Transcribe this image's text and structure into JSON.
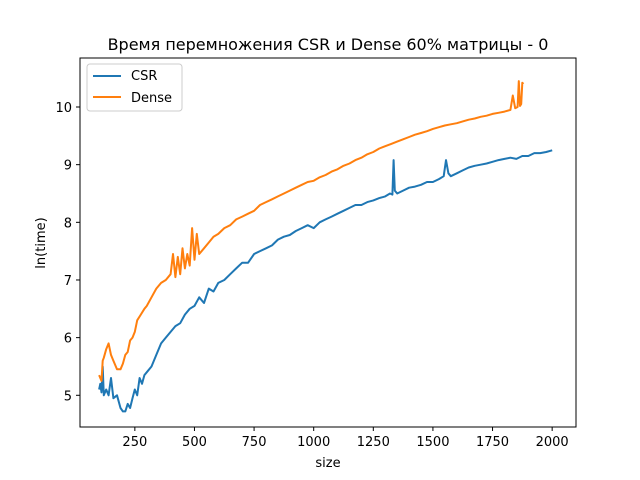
{
  "chart_data": {
    "type": "line",
    "title": "Время перемножения CSR и Dense 60% матрицы - 0",
    "xlabel": "size",
    "ylabel": "ln(time)",
    "xlim": [
      20,
      2100
    ],
    "ylim": [
      4.45,
      10.85
    ],
    "xticks": [
      250,
      500,
      750,
      1000,
      1250,
      1500,
      1750,
      2000
    ],
    "yticks": [
      5,
      6,
      7,
      8,
      9,
      10
    ],
    "grid": false,
    "legend": "top-left",
    "series": [
      {
        "name": "CSR",
        "color": "#1f77b4",
        "x": [
          100,
          105,
          110,
          115,
          120,
          130,
          140,
          150,
          160,
          175,
          190,
          200,
          210,
          220,
          230,
          240,
          250,
          260,
          270,
          280,
          290,
          300,
          320,
          340,
          360,
          380,
          400,
          420,
          440,
          460,
          480,
          500,
          520,
          540,
          560,
          580,
          600,
          625,
          650,
          675,
          700,
          725,
          750,
          775,
          800,
          825,
          850,
          875,
          900,
          925,
          950,
          975,
          1000,
          1025,
          1050,
          1075,
          1100,
          1125,
          1150,
          1175,
          1200,
          1225,
          1250,
          1275,
          1300,
          1320,
          1330,
          1335,
          1340,
          1350,
          1375,
          1400,
          1425,
          1450,
          1475,
          1500,
          1525,
          1545,
          1555,
          1565,
          1575,
          1600,
          1625,
          1650,
          1675,
          1700,
          1725,
          1750,
          1775,
          1800,
          1825,
          1850,
          1875,
          1900,
          1925,
          1950,
          1975,
          2000
        ],
        "y": [
          5.1,
          5.2,
          5.05,
          5.5,
          5.0,
          5.1,
          5.0,
          5.3,
          4.95,
          5.0,
          4.78,
          4.72,
          4.72,
          4.85,
          4.78,
          4.95,
          5.1,
          5.0,
          5.3,
          5.2,
          5.35,
          5.4,
          5.5,
          5.7,
          5.9,
          6.0,
          6.1,
          6.2,
          6.25,
          6.4,
          6.5,
          6.55,
          6.7,
          6.6,
          6.85,
          6.8,
          6.95,
          7.0,
          7.1,
          7.2,
          7.3,
          7.3,
          7.45,
          7.5,
          7.55,
          7.6,
          7.7,
          7.75,
          7.78,
          7.85,
          7.9,
          7.95,
          7.9,
          8.0,
          8.05,
          8.1,
          8.15,
          8.2,
          8.25,
          8.3,
          8.3,
          8.35,
          8.38,
          8.42,
          8.45,
          8.5,
          8.48,
          9.08,
          8.55,
          8.5,
          8.55,
          8.6,
          8.62,
          8.65,
          8.7,
          8.7,
          8.75,
          8.8,
          9.08,
          8.85,
          8.8,
          8.85,
          8.9,
          8.95,
          8.98,
          9.0,
          9.02,
          9.05,
          9.08,
          9.1,
          9.12,
          9.1,
          9.15,
          9.15,
          9.2,
          9.2,
          9.22,
          9.25
        ]
      },
      {
        "name": "Dense",
        "color": "#ff7f0e",
        "x": [
          100,
          105,
          110,
          115,
          120,
          130,
          140,
          150,
          160,
          175,
          190,
          200,
          210,
          220,
          230,
          240,
          250,
          260,
          275,
          290,
          300,
          320,
          340,
          360,
          380,
          400,
          410,
          420,
          430,
          440,
          450,
          460,
          470,
          480,
          490,
          500,
          510,
          520,
          540,
          560,
          580,
          600,
          625,
          650,
          675,
          700,
          725,
          750,
          775,
          800,
          825,
          850,
          875,
          900,
          925,
          950,
          975,
          1000,
          1025,
          1050,
          1075,
          1100,
          1125,
          1150,
          1175,
          1200,
          1225,
          1250,
          1275,
          1300,
          1325,
          1350,
          1375,
          1400,
          1425,
          1450,
          1475,
          1500,
          1525,
          1550,
          1575,
          1600,
          1625,
          1650,
          1675,
          1700,
          1725,
          1750,
          1775,
          1800,
          1825,
          1835,
          1845,
          1855,
          1860,
          1865,
          1870,
          1875,
          1880
        ],
        "y": [
          5.35,
          5.3,
          5.25,
          5.6,
          5.65,
          5.8,
          5.9,
          5.7,
          5.6,
          5.45,
          5.45,
          5.55,
          5.7,
          5.75,
          5.95,
          6.0,
          6.1,
          6.3,
          6.4,
          6.5,
          6.55,
          6.7,
          6.85,
          6.95,
          7.0,
          7.1,
          7.45,
          7.05,
          7.4,
          7.1,
          7.55,
          7.2,
          7.45,
          7.25,
          7.9,
          7.35,
          7.8,
          7.45,
          7.55,
          7.65,
          7.75,
          7.8,
          7.9,
          7.95,
          8.05,
          8.1,
          8.15,
          8.2,
          8.3,
          8.35,
          8.4,
          8.45,
          8.5,
          8.55,
          8.6,
          8.65,
          8.7,
          8.72,
          8.78,
          8.82,
          8.88,
          8.92,
          8.98,
          9.02,
          9.08,
          9.12,
          9.18,
          9.22,
          9.28,
          9.32,
          9.36,
          9.4,
          9.44,
          9.48,
          9.52,
          9.55,
          9.58,
          9.62,
          9.65,
          9.68,
          9.7,
          9.72,
          9.75,
          9.78,
          9.8,
          9.83,
          9.85,
          9.88,
          9.9,
          9.92,
          9.95,
          10.2,
          9.98,
          10.0,
          10.45,
          10.02,
          10.05,
          10.42,
          10.4
        ]
      }
    ]
  }
}
